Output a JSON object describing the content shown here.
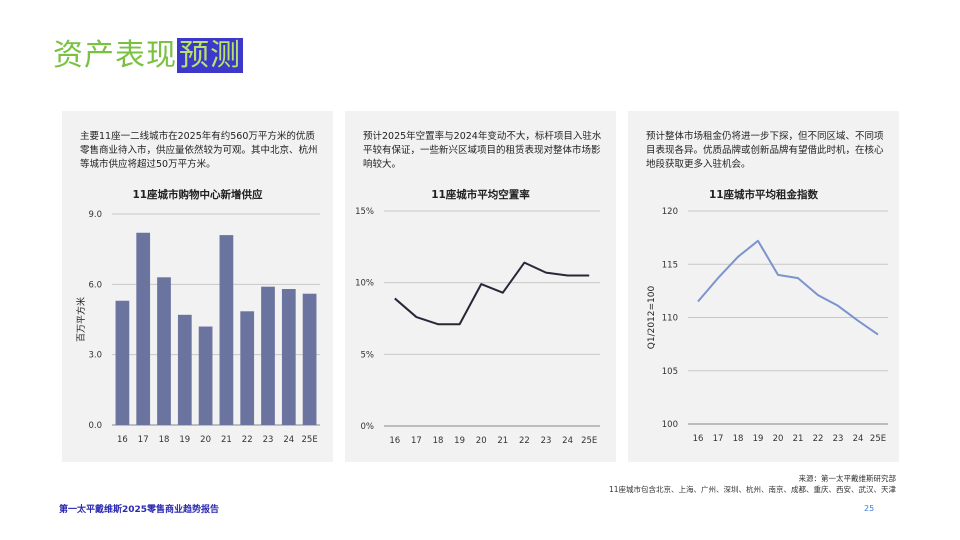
{
  "page": {
    "title_main": "资产表现",
    "title_highlight": "预测",
    "source_line1": "来源：第一太平戴维斯研究部",
    "source_line2": "11座城市包含北京、上海、广州、深圳、杭州、南京、成都、重庆、西安、武汉、天津",
    "footer": "第一太平戴维斯2025零售商业趋势报告",
    "page_number": "25"
  },
  "panels": [
    {
      "desc": "主要11座一二线城市在2025年有约560万平方米的优质零售商业待入市，供应量依然较为可观。其中北京、杭州等城市供应将超过50万平方米。"
    },
    {
      "desc": "预计2025年空置率与2024年变动不大，标杆项目入驻水平较有保证，一些新兴区域项目的租赁表现对整体市场影响较大。"
    },
    {
      "desc": "预计整体市场租金仍将进一步下探，但不同区域、不同项目表现各异。优质品牌或创新品牌有望借此时机，在核心地段获取更多入驻机会。"
    }
  ],
  "colors": {
    "bar": "#6b739f",
    "vacancy_line": "#262838",
    "rent_line": "#7b93cf",
    "grid": "#c8c8c8"
  },
  "chart_data": [
    {
      "type": "bar",
      "title": "11座城市购物中心新增供应",
      "ylabel": "百万平方米",
      "xlabel": "",
      "categories": [
        "16",
        "17",
        "18",
        "19",
        "20",
        "21",
        "22",
        "23",
        "24",
        "25E"
      ],
      "values": [
        5.3,
        8.2,
        6.3,
        4.7,
        4.2,
        8.1,
        4.85,
        5.9,
        5.8,
        5.6
      ],
      "ylim": [
        0,
        9
      ],
      "yticks": [
        0,
        3,
        6,
        9
      ],
      "ytick_labels": [
        "0.0",
        "3.0",
        "6.0",
        "9.0"
      ],
      "grid": true
    },
    {
      "type": "line",
      "title": "11座城市平均空置率",
      "ylabel": "",
      "xlabel": "",
      "categories": [
        "16",
        "17",
        "18",
        "19",
        "20",
        "21",
        "22",
        "23",
        "24",
        "25E"
      ],
      "values": [
        8.9,
        7.6,
        7.1,
        7.1,
        9.9,
        9.3,
        11.4,
        10.7,
        10.5,
        10.5
      ],
      "ylim": [
        0,
        15
      ],
      "yticks": [
        0,
        5,
        10,
        15
      ],
      "ytick_labels": [
        "0%",
        "5%",
        "10%",
        "15%"
      ],
      "grid": true
    },
    {
      "type": "line",
      "title": "11座城市平均租金指数",
      "ylabel": "Q1/2012=100",
      "xlabel": "",
      "categories": [
        "16",
        "17",
        "18",
        "19",
        "20",
        "21",
        "22",
        "23",
        "24",
        "25E"
      ],
      "values": [
        111.5,
        113.7,
        115.7,
        117.2,
        114.0,
        113.7,
        112.1,
        111.1,
        109.7,
        108.4
      ],
      "ylim": [
        100,
        120
      ],
      "yticks": [
        100,
        105,
        110,
        115,
        120
      ],
      "ytick_labels": [
        "100",
        "105",
        "110",
        "115",
        "120"
      ],
      "grid": true
    }
  ]
}
